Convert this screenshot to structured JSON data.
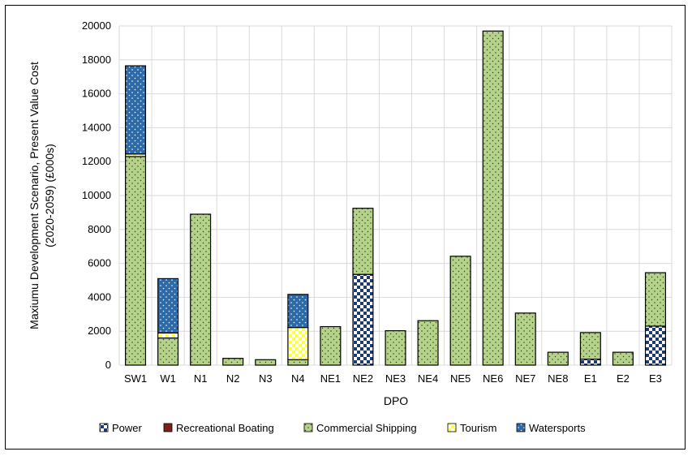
{
  "chart_data": {
    "type": "bar",
    "stacked": true,
    "title": "",
    "xlabel": "DPO",
    "ylabel_line1": "Maxiumu Development Scenario, Present Value Cost",
    "ylabel_line2": "(2020-2059) (£000s)",
    "ylim": [
      0,
      20000
    ],
    "ytick_step": 2000,
    "yticks": [
      "0",
      "2000",
      "4000",
      "6000",
      "8000",
      "10000",
      "12000",
      "14000",
      "16000",
      "18000",
      "20000"
    ],
    "grid": true,
    "legend_position": "bottom",
    "categories": [
      "SW1",
      "W1",
      "N1",
      "N2",
      "N3",
      "N4",
      "NE1",
      "NE2",
      "NE3",
      "NE4",
      "NE5",
      "NE6",
      "NE7",
      "NE8",
      "E1",
      "E2",
      "E3"
    ],
    "series": [
      {
        "name": "Power",
        "color": "#1f3a6e",
        "pattern": "checker",
        "values": [
          0,
          0,
          0,
          0,
          0,
          0,
          0,
          5350,
          0,
          0,
          0,
          0,
          0,
          0,
          350,
          0,
          2300
        ]
      },
      {
        "name": "Recreational Boating",
        "color": "#7b1f1f",
        "pattern": "solid",
        "values": [
          0,
          0,
          0,
          0,
          0,
          0,
          0,
          0,
          0,
          0,
          0,
          0,
          0,
          0,
          0,
          0,
          0
        ]
      },
      {
        "name": "Commercial Shipping",
        "color": "#b4d289",
        "pattern": "dots",
        "values": [
          12300,
          1600,
          8900,
          400,
          320,
          320,
          2270,
          3900,
          2030,
          2620,
          6420,
          19700,
          3070,
          760,
          1570,
          760,
          3150
        ]
      },
      {
        "name": "Tourism",
        "color": "#ffff44",
        "pattern": "checker-yellow",
        "values": [
          150,
          300,
          0,
          0,
          0,
          1900,
          0,
          0,
          0,
          0,
          0,
          0,
          0,
          0,
          0,
          0,
          0
        ]
      },
      {
        "name": "Watersports",
        "color": "#2e6aa7",
        "pattern": "dots-dark",
        "values": [
          5200,
          3200,
          0,
          0,
          0,
          1950,
          0,
          0,
          0,
          0,
          0,
          0,
          0,
          0,
          0,
          0,
          0
        ]
      }
    ]
  }
}
